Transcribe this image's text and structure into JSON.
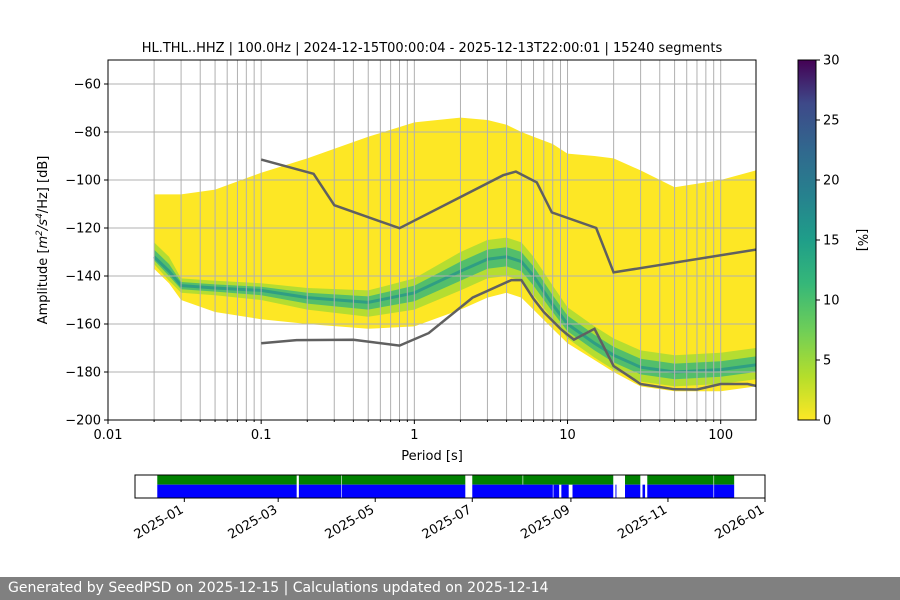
{
  "chart_data": [
    {
      "type": "heatmap",
      "title": "HL.THL..HHZ | 100.0Hz | 2024-12-15T00:00:04 - 2025-12-13T22:00:01 | 15240 segments",
      "xlabel": "Period [s]",
      "ylabel_parts": [
        "Amplitude [",
        "m",
        "2",
        "/",
        "s",
        "4",
        "/Hz] [dB]"
      ],
      "x_scale": "log",
      "xlim": [
        0.01,
        170
      ],
      "ylim": [
        -200,
        -50
      ],
      "x_ticks": [
        0.01,
        0.1,
        1,
        10,
        100
      ],
      "x_tick_labels": [
        "0.01",
        "0.1",
        "1",
        "10",
        "100"
      ],
      "y_ticks": [
        -200,
        -180,
        -160,
        -140,
        -120,
        -100,
        -80,
        -60
      ],
      "y_tick_labels": [
        "−200",
        "−180",
        "−160",
        "−140",
        "−120",
        "−100",
        "−80",
        "−60"
      ],
      "grid": true,
      "colorbar": {
        "label": "[%]",
        "range": [
          0,
          30
        ],
        "ticks": [
          0,
          5,
          10,
          15,
          20,
          25,
          30
        ],
        "tick_labels": [
          "0",
          "5",
          "10",
          "15",
          "20",
          "25",
          "30"
        ],
        "colormap": "viridis"
      },
      "density_band": {
        "period": [
          0.02,
          0.025,
          0.03,
          0.05,
          0.1,
          0.2,
          0.5,
          1,
          2,
          3,
          4,
          5,
          6,
          8,
          10,
          15,
          20,
          30,
          50,
          100,
          170
        ],
        "mode_db": [
          -132,
          -138,
          -144,
          -145,
          -146,
          -149,
          -151,
          -147,
          -138,
          -133,
          -132,
          -134,
          -140,
          -152,
          -160,
          -168,
          -173,
          -178,
          -180,
          -179,
          -177
        ],
        "low_db": [
          -135,
          -142,
          -147,
          -148,
          -150,
          -154,
          -157,
          -154,
          -146,
          -141,
          -140,
          -142,
          -148,
          -158,
          -166,
          -174,
          -179,
          -184,
          -186,
          -185,
          -183
        ],
        "high_db": [
          -126,
          -132,
          -141,
          -142,
          -143,
          -145,
          -146,
          -141,
          -130,
          -125,
          -124,
          -126,
          -132,
          -144,
          -153,
          -161,
          -166,
          -171,
          -173,
          -172,
          -170
        ],
        "upper_envelope_db": [
          -106,
          -106,
          -106,
          -104,
          -97,
          -91,
          -82,
          -76,
          -74,
          -75,
          -77,
          -80,
          -82,
          -85,
          -89,
          -90,
          -91,
          -96,
          -103,
          -100,
          -96
        ],
        "lower_envelope_db": [
          -137,
          -143,
          -150,
          -155,
          -158,
          -160,
          -162,
          -161,
          -154,
          -149,
          -147,
          -149,
          -154,
          -162,
          -168,
          -175,
          -180,
          -186,
          -188,
          -188,
          -186
        ]
      },
      "series": [
        {
          "name": "",
          "color": "#606060",
          "x": [
            0.1,
            0.22,
            0.3,
            0.8,
            3.8,
            4.6,
            6.3,
            7.9,
            15.4,
            20,
            170
          ],
          "y": [
            -91.5,
            -97.4,
            -110.5,
            -120.1,
            -98.0,
            -96.5,
            -101.0,
            -113.5,
            -120.0,
            -138.5,
            -129.0
          ]
        },
        {
          "name": "",
          "color": "#606060",
          "x": [
            0.1,
            0.17,
            0.4,
            0.8,
            1.24,
            2.4,
            4.3,
            5.0,
            6.0,
            7.0,
            9.0,
            10.0,
            11.0,
            15.0,
            20.0,
            30.0,
            50.0,
            70.0,
            100.0,
            150.0,
            170.0
          ],
          "y": [
            -168.0,
            -166.7,
            -166.6,
            -169.0,
            -163.8,
            -149.0,
            -141.7,
            -141.7,
            -149.5,
            -155.0,
            -162.0,
            -164.4,
            -166.5,
            -162.0,
            -177.5,
            -185.0,
            -187.2,
            -187.3,
            -185.0,
            -185.0,
            -185.8
          ]
        }
      ]
    },
    {
      "type": "timeline",
      "x_tick_labels": [
        "2025-01",
        "2025-03",
        "2025-05",
        "2025-07",
        "2025-09",
        "2025-11",
        "2026-01"
      ],
      "x_tick_dates": [
        "2025-01-01",
        "2025-03-01",
        "2025-05-01",
        "2025-07-01",
        "2025-09-01",
        "2025-11-01",
        "2026-01-01"
      ],
      "xlim": [
        "2024-12-01",
        "2026-01-01"
      ],
      "colors": {
        "used": "#008000",
        "available": "#0000ff"
      },
      "used_intervals": [
        [
          "2024-12-15",
          "2025-03-13"
        ],
        [
          "2025-03-14",
          "2025-04-10"
        ],
        [
          "2025-04-10",
          "2025-06-27"
        ],
        [
          "2025-07-01",
          "2025-08-02"
        ],
        [
          "2025-08-02",
          "2025-09-28"
        ],
        [
          "2025-10-05",
          "2025-10-15"
        ],
        [
          "2025-10-19",
          "2025-11-30"
        ],
        [
          "2025-11-30",
          "2025-12-13"
        ]
      ],
      "available_intervals": [
        [
          "2024-12-15",
          "2025-03-13"
        ],
        [
          "2025-03-14",
          "2025-04-10"
        ],
        [
          "2025-04-10",
          "2025-06-27"
        ],
        [
          "2025-07-01",
          "2025-08-21"
        ],
        [
          "2025-08-21",
          "2025-08-25"
        ],
        [
          "2025-08-26",
          "2025-08-31"
        ],
        [
          "2025-09-02",
          "2025-09-28"
        ],
        [
          "2025-09-29",
          "2025-09-30"
        ],
        [
          "2025-10-05",
          "2025-10-15"
        ],
        [
          "2025-10-16",
          "2025-10-18"
        ],
        [
          "2025-10-19",
          "2025-11-30"
        ],
        [
          "2025-11-30",
          "2025-12-13"
        ]
      ]
    }
  ],
  "footer": {
    "text": "Generated by SeedPSD on 2025-12-15 | Calculations updated on 2025-12-14"
  }
}
